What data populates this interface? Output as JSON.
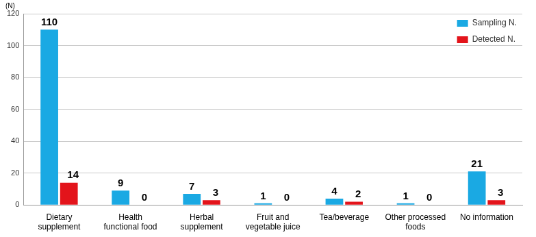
{
  "chart_data": {
    "type": "bar",
    "y_label": "(N)",
    "categories": [
      "Dietary supplement",
      "Health functional food",
      "Herbal supplement",
      "Fruit and vegetable juice",
      "Tea/beverage",
      "Other processed foods",
      "No information"
    ],
    "series": [
      {
        "name": "Sampling N.",
        "color": "#1aa9e3",
        "values": [
          110,
          9,
          7,
          1,
          4,
          1,
          21
        ]
      },
      {
        "name": "Detected N.",
        "color": "#e3141b",
        "values": [
          14,
          0,
          3,
          0,
          2,
          0,
          3
        ]
      }
    ],
    "ylim": [
      0,
      120
    ],
    "yticks": [
      0,
      20,
      40,
      60,
      80,
      100,
      120
    ],
    "grid": true,
    "legend": "top-right",
    "data_labels": true
  }
}
